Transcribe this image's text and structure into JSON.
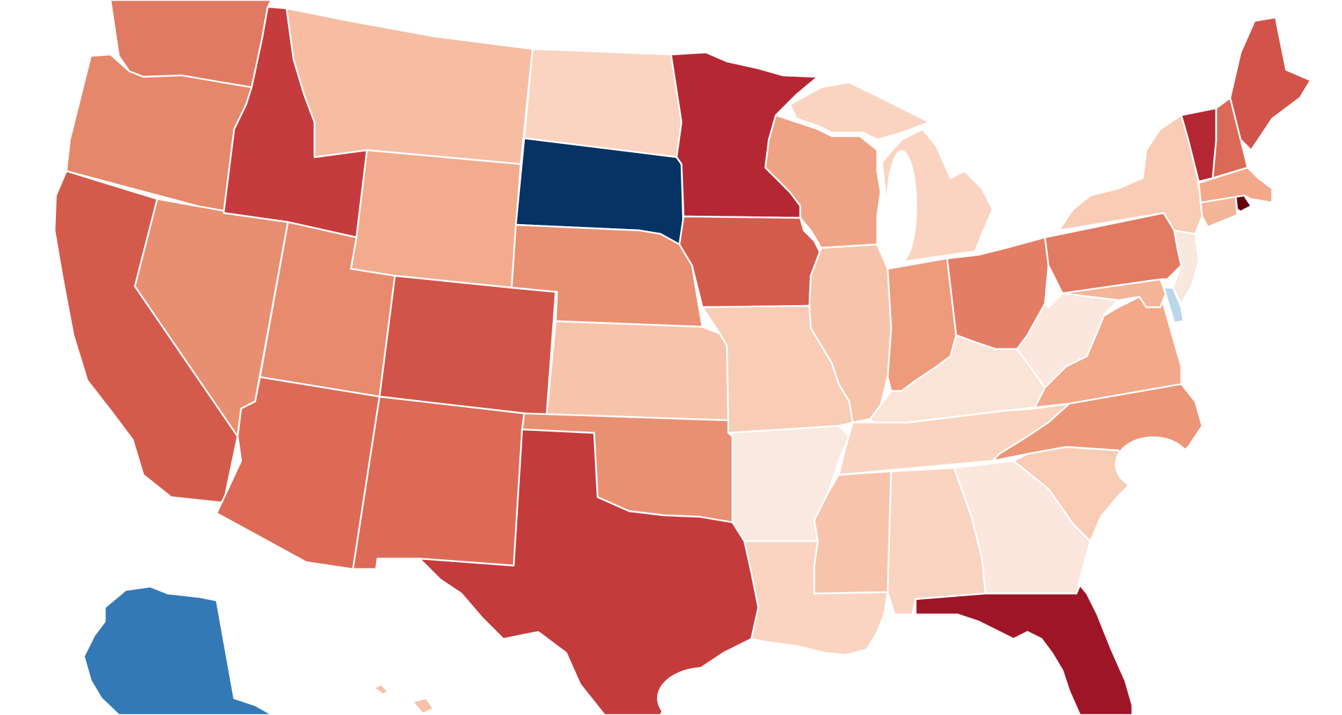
{
  "map": {
    "type": "choropleth",
    "region": "United States",
    "scale": {
      "type": "diverging",
      "low_color": "#08306b",
      "high_color": "#67000d",
      "mid_color": "#f7f7f7"
    },
    "states": {
      "WA": {
        "fill": "#e07a62"
      },
      "OR": {
        "fill": "#e5876a"
      },
      "CA": {
        "fill": "#d45b4c"
      },
      "NV": {
        "fill": "#e88e71"
      },
      "ID": {
        "fill": "#c63c3e"
      },
      "MT": {
        "fill": "#f6bda2"
      },
      "WY": {
        "fill": "#f2ac8d"
      },
      "UT": {
        "fill": "#e78a6e"
      },
      "AZ": {
        "fill": "#dc6a56"
      },
      "CO": {
        "fill": "#d05448"
      },
      "NM": {
        "fill": "#dc6a56"
      },
      "ND": {
        "fill": "#fad4c0"
      },
      "SD": {
        "fill": "#063264"
      },
      "NE": {
        "fill": "#e98f72"
      },
      "KS": {
        "fill": "#f7c4ab"
      },
      "OK": {
        "fill": "#e98f72"
      },
      "TX": {
        "fill": "#c43b3c"
      },
      "MN": {
        "fill": "#b52733"
      },
      "IA": {
        "fill": "#d45b4c"
      },
      "MO": {
        "fill": "#f8ccb5"
      },
      "AR": {
        "fill": "#f9e9e0"
      },
      "LA": {
        "fill": "#fad4c0"
      },
      "WI": {
        "fill": "#f0a284"
      },
      "IL": {
        "fill": "#f7c4ab"
      },
      "MI": {
        "fill": "#fad4c0"
      },
      "IN": {
        "fill": "#ee9b7c"
      },
      "OH": {
        "fill": "#e47d65"
      },
      "KY": {
        "fill": "#fbe3d6"
      },
      "TN": {
        "fill": "#fad4c0"
      },
      "MS": {
        "fill": "#f7c4ab"
      },
      "AL": {
        "fill": "#fad4c0"
      },
      "GA": {
        "fill": "#fbe7dd"
      },
      "FL": {
        "fill": "#9f1528"
      },
      "SC": {
        "fill": "#f8ccb5"
      },
      "NC": {
        "fill": "#ec9577"
      },
      "VA": {
        "fill": "#f2a889"
      },
      "WV": {
        "fill": "#fbe7dd"
      },
      "PA": {
        "fill": "#e17a61"
      },
      "NY": {
        "fill": "#f8ccb5"
      },
      "VT": {
        "fill": "#b52733"
      },
      "NH": {
        "fill": "#db6957"
      },
      "ME": {
        "fill": "#d15349"
      },
      "MA": {
        "fill": "#f2a889"
      },
      "CT": {
        "fill": "#f4b598"
      },
      "RI": {
        "fill": "#67000d"
      },
      "NJ": {
        "fill": "#f9e8de"
      },
      "DE": {
        "fill": "#b9d7ea"
      },
      "MD": {
        "fill": "#f4b598"
      },
      "AK": {
        "fill": "#3279b6"
      },
      "HI": {
        "fill": "#f7c4ab"
      }
    }
  }
}
